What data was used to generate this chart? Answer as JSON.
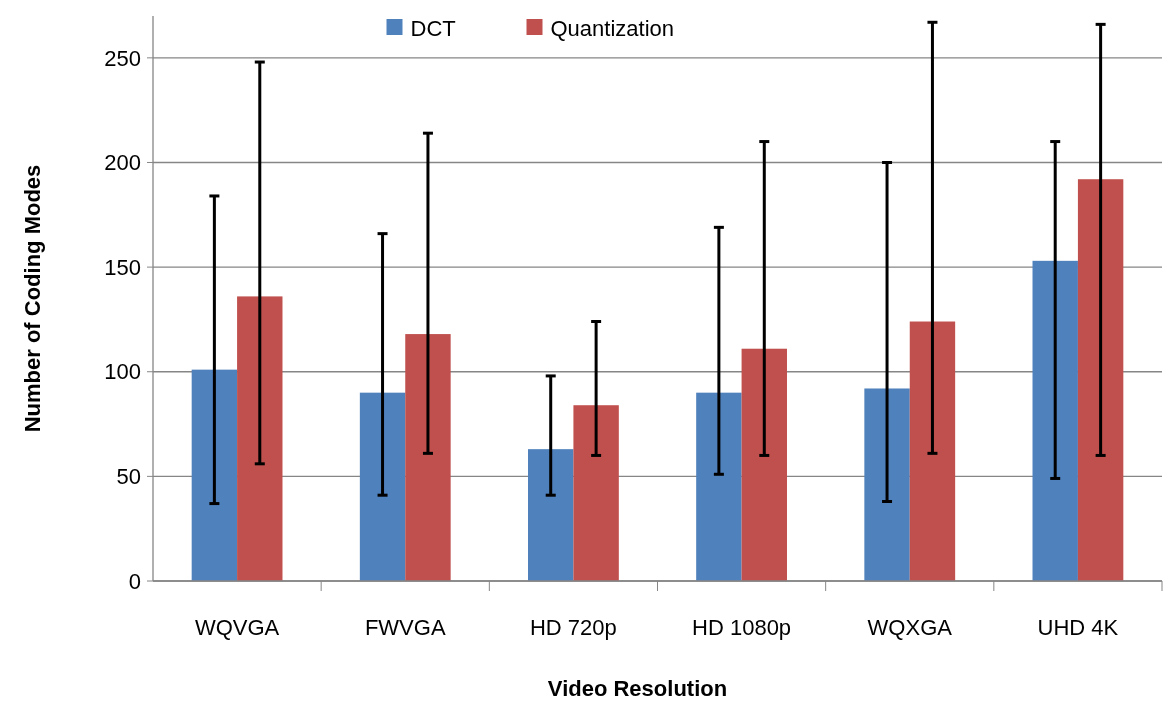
{
  "chart_data": {
    "type": "bar",
    "xlabel": "Video Resolution",
    "ylabel": "Number of Coding Modes",
    "categories": [
      "WQVGA",
      "FWVGA",
      "HD 720p",
      "HD 1080p",
      "WQXGA",
      "UHD 4K"
    ],
    "series": [
      {
        "name": "DCT",
        "color": "#4f81bd",
        "values": [
          101,
          90,
          63,
          90,
          92,
          153
        ],
        "errors": [
          [
            37,
            184
          ],
          [
            41,
            166
          ],
          [
            41,
            98
          ],
          [
            51,
            169
          ],
          [
            38,
            200
          ],
          [
            49,
            210
          ]
        ]
      },
      {
        "name": "Quantization",
        "color": "#c0504d",
        "values": [
          136,
          118,
          84,
          111,
          124,
          192
        ],
        "errors": [
          [
            56,
            248
          ],
          [
            61,
            214
          ],
          [
            60,
            124
          ],
          [
            60,
            210
          ],
          [
            61,
            267
          ],
          [
            60,
            266
          ]
        ]
      }
    ],
    "ylim": [
      0,
      270
    ],
    "yticks": [
      0,
      50,
      100,
      150,
      200,
      250
    ],
    "grid": "y",
    "legend": "top"
  }
}
